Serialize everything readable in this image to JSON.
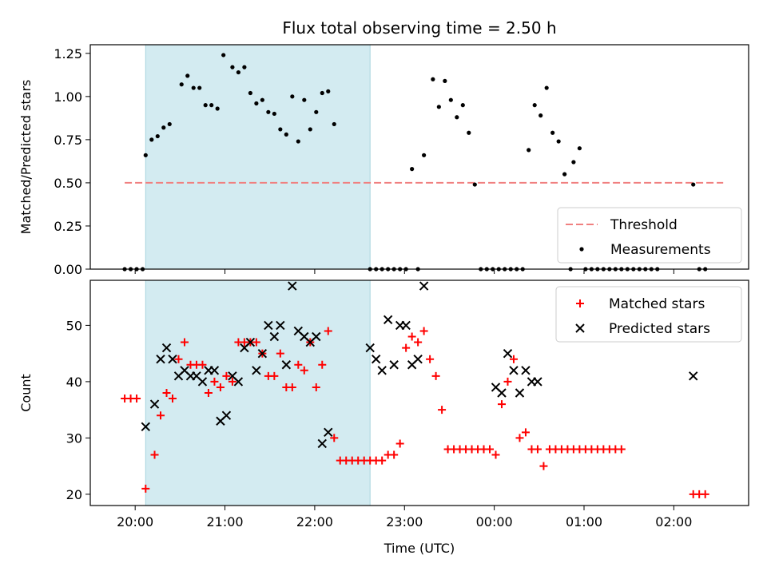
{
  "chart_data": [
    {
      "type": "scatter",
      "title": "Flux total observing time = 2.50 h",
      "xlabel": "",
      "ylabel": "Matched/Predicted stars",
      "ylim": [
        0,
        1.3
      ],
      "yticks": [
        0,
        0.25,
        0.5,
        0.75,
        1.0,
        1.25
      ],
      "ytick_labels": [
        "0.00",
        "0.25",
        "0.50",
        "0.75",
        "1.00",
        "1.25"
      ],
      "legend_position": "lower-right",
      "shaded_region": {
        "x_start": "20:07",
        "x_end": "22:37",
        "color": "#d3ebf1"
      },
      "threshold": {
        "name": "Threshold",
        "value": 0.5,
        "x_start": "19:53",
        "x_end": "02:33",
        "color": "#f08080"
      },
      "series": [
        {
          "name": "Measurements",
          "color": "#000000",
          "marker": "dot",
          "points": [
            [
              "19:53",
              0
            ],
            [
              "19:57",
              0
            ],
            [
              "20:01",
              0
            ],
            [
              "20:05",
              0
            ],
            [
              "20:07",
              0.66
            ],
            [
              "20:11",
              0.75
            ],
            [
              "20:15",
              0.77
            ],
            [
              "20:19",
              0.82
            ],
            [
              "20:23",
              0.84
            ],
            [
              "20:31",
              1.07
            ],
            [
              "20:35",
              1.12
            ],
            [
              "20:39",
              1.05
            ],
            [
              "20:43",
              1.05
            ],
            [
              "20:47",
              0.95
            ],
            [
              "20:51",
              0.95
            ],
            [
              "20:55",
              0.93
            ],
            [
              "20:59",
              1.24
            ],
            [
              "21:05",
              1.17
            ],
            [
              "21:09",
              1.14
            ],
            [
              "21:13",
              1.17
            ],
            [
              "21:17",
              1.02
            ],
            [
              "21:21",
              0.96
            ],
            [
              "21:25",
              0.98
            ],
            [
              "21:29",
              0.91
            ],
            [
              "21:33",
              0.9
            ],
            [
              "21:37",
              0.81
            ],
            [
              "21:41",
              0.78
            ],
            [
              "21:45",
              1.0
            ],
            [
              "21:49",
              0.74
            ],
            [
              "21:53",
              0.98
            ],
            [
              "21:57",
              0.81
            ],
            [
              "22:01",
              0.91
            ],
            [
              "22:05",
              1.02
            ],
            [
              "22:09",
              1.03
            ],
            [
              "22:13",
              0.84
            ],
            [
              "22:37",
              0
            ],
            [
              "22:41",
              0
            ],
            [
              "22:45",
              0
            ],
            [
              "22:49",
              0
            ],
            [
              "22:53",
              0
            ],
            [
              "22:57",
              0
            ],
            [
              "23:01",
              0
            ],
            [
              "23:05",
              0.58
            ],
            [
              "23:09",
              0
            ],
            [
              "23:13",
              0.66
            ],
            [
              "23:19",
              1.1
            ],
            [
              "23:23",
              0.94
            ],
            [
              "23:27",
              1.09
            ],
            [
              "23:31",
              0.98
            ],
            [
              "23:35",
              0.88
            ],
            [
              "23:39",
              0.95
            ],
            [
              "23:43",
              0.79
            ],
            [
              "23:47",
              0.49
            ],
            [
              "23:51",
              0
            ],
            [
              "23:55",
              0
            ],
            [
              "23:59",
              0
            ],
            [
              "00:03",
              0
            ],
            [
              "00:07",
              0
            ],
            [
              "00:11",
              0
            ],
            [
              "00:15",
              0
            ],
            [
              "00:19",
              0
            ],
            [
              "00:23",
              0.69
            ],
            [
              "00:27",
              0.95
            ],
            [
              "00:31",
              0.89
            ],
            [
              "00:35",
              1.05
            ],
            [
              "00:39",
              0.79
            ],
            [
              "00:43",
              0.74
            ],
            [
              "00:47",
              0.55
            ],
            [
              "00:51",
              0
            ],
            [
              "00:53",
              0.62
            ],
            [
              "00:57",
              0.7
            ],
            [
              "01:01",
              0
            ],
            [
              "01:05",
              0
            ],
            [
              "01:09",
              0
            ],
            [
              "01:13",
              0
            ],
            [
              "01:17",
              0
            ],
            [
              "01:21",
              0
            ],
            [
              "01:25",
              0
            ],
            [
              "01:29",
              0
            ],
            [
              "01:33",
              0
            ],
            [
              "01:37",
              0
            ],
            [
              "01:41",
              0
            ],
            [
              "01:45",
              0
            ],
            [
              "01:49",
              0
            ],
            [
              "02:13",
              0.49
            ],
            [
              "02:17",
              0
            ],
            [
              "02:21",
              0
            ]
          ]
        }
      ]
    },
    {
      "type": "scatter",
      "title": "",
      "xlabel": "Time (UTC)",
      "ylabel": "Count",
      "ylim": [
        18,
        58
      ],
      "yticks": [
        20,
        30,
        40,
        50
      ],
      "xticks": [
        "20:00",
        "21:00",
        "22:00",
        "23:00",
        "00:00",
        "01:00",
        "02:00"
      ],
      "legend_position": "upper-right",
      "shaded_region": {
        "x_start": "20:07",
        "x_end": "22:37",
        "color": "#d3ebf1"
      },
      "series": [
        {
          "name": "Matched stars",
          "color": "#ff0000",
          "marker": "plus",
          "points": [
            [
              "19:53",
              37
            ],
            [
              "19:57",
              37
            ],
            [
              "20:01",
              37
            ],
            [
              "20:07",
              21
            ],
            [
              "20:13",
              27
            ],
            [
              "20:17",
              34
            ],
            [
              "20:21",
              38
            ],
            [
              "20:25",
              37
            ],
            [
              "20:29",
              44
            ],
            [
              "20:33",
              47
            ],
            [
              "20:37",
              43
            ],
            [
              "20:41",
              43
            ],
            [
              "20:45",
              43
            ],
            [
              "20:49",
              38
            ],
            [
              "20:53",
              40
            ],
            [
              "20:57",
              39
            ],
            [
              "21:01",
              41
            ],
            [
              "21:05",
              40
            ],
            [
              "21:09",
              47
            ],
            [
              "21:13",
              47
            ],
            [
              "21:17",
              47
            ],
            [
              "21:21",
              47
            ],
            [
              "21:25",
              45
            ],
            [
              "21:29",
              41
            ],
            [
              "21:33",
              41
            ],
            [
              "21:37",
              45
            ],
            [
              "21:41",
              39
            ],
            [
              "21:45",
              39
            ],
            [
              "21:49",
              43
            ],
            [
              "21:53",
              42
            ],
            [
              "21:57",
              47
            ],
            [
              "22:01",
              39
            ],
            [
              "22:05",
              43
            ],
            [
              "22:09",
              49
            ],
            [
              "22:13",
              30
            ],
            [
              "22:17",
              26
            ],
            [
              "22:21",
              26
            ],
            [
              "22:25",
              26
            ],
            [
              "22:29",
              26
            ],
            [
              "22:33",
              26
            ],
            [
              "22:37",
              26
            ],
            [
              "22:41",
              26
            ],
            [
              "22:45",
              26
            ],
            [
              "22:49",
              27
            ],
            [
              "22:53",
              27
            ],
            [
              "22:57",
              29
            ],
            [
              "23:01",
              46
            ],
            [
              "23:05",
              48
            ],
            [
              "23:09",
              47
            ],
            [
              "23:13",
              49
            ],
            [
              "23:17",
              44
            ],
            [
              "23:21",
              41
            ],
            [
              "23:25",
              35
            ],
            [
              "23:29",
              28
            ],
            [
              "23:33",
              28
            ],
            [
              "23:37",
              28
            ],
            [
              "23:41",
              28
            ],
            [
              "23:45",
              28
            ],
            [
              "23:49",
              28
            ],
            [
              "23:53",
              28
            ],
            [
              "23:57",
              28
            ],
            [
              "00:01",
              27
            ],
            [
              "00:05",
              36
            ],
            [
              "00:09",
              40
            ],
            [
              "00:13",
              44
            ],
            [
              "00:17",
              30
            ],
            [
              "00:21",
              31
            ],
            [
              "00:25",
              28
            ],
            [
              "00:29",
              28
            ],
            [
              "00:33",
              25
            ],
            [
              "00:37",
              28
            ],
            [
              "00:41",
              28
            ],
            [
              "00:45",
              28
            ],
            [
              "00:49",
              28
            ],
            [
              "00:53",
              28
            ],
            [
              "00:57",
              28
            ],
            [
              "01:01",
              28
            ],
            [
              "01:05",
              28
            ],
            [
              "01:09",
              28
            ],
            [
              "01:13",
              28
            ],
            [
              "01:17",
              28
            ],
            [
              "01:21",
              28
            ],
            [
              "01:25",
              28
            ],
            [
              "02:13",
              20
            ],
            [
              "02:17",
              20
            ],
            [
              "02:21",
              20
            ]
          ]
        },
        {
          "name": "Predicted stars",
          "color": "#000000",
          "marker": "x",
          "points": [
            [
              "20:07",
              32
            ],
            [
              "20:13",
              36
            ],
            [
              "20:17",
              44
            ],
            [
              "20:21",
              46
            ],
            [
              "20:25",
              44
            ],
            [
              "20:29",
              41
            ],
            [
              "20:33",
              42
            ],
            [
              "20:37",
              41
            ],
            [
              "20:41",
              41
            ],
            [
              "20:45",
              40
            ],
            [
              "20:49",
              42
            ],
            [
              "20:53",
              42
            ],
            [
              "20:57",
              33
            ],
            [
              "21:01",
              34
            ],
            [
              "21:05",
              41
            ],
            [
              "21:09",
              40
            ],
            [
              "21:13",
              46
            ],
            [
              "21:17",
              47
            ],
            [
              "21:21",
              42
            ],
            [
              "21:25",
              45
            ],
            [
              "21:29",
              50
            ],
            [
              "21:33",
              48
            ],
            [
              "21:37",
              50
            ],
            [
              "21:41",
              43
            ],
            [
              "21:45",
              57
            ],
            [
              "21:49",
              49
            ],
            [
              "21:53",
              48
            ],
            [
              "21:57",
              47
            ],
            [
              "22:01",
              48
            ],
            [
              "22:05",
              29
            ],
            [
              "22:09",
              31
            ],
            [
              "22:37",
              46
            ],
            [
              "22:41",
              44
            ],
            [
              "22:45",
              42
            ],
            [
              "22:49",
              51
            ],
            [
              "22:53",
              43
            ],
            [
              "22:57",
              50
            ],
            [
              "23:01",
              50
            ],
            [
              "23:05",
              43
            ],
            [
              "23:09",
              44
            ],
            [
              "23:13",
              57
            ],
            [
              "00:01",
              39
            ],
            [
              "00:05",
              38
            ],
            [
              "00:09",
              45
            ],
            [
              "00:13",
              42
            ],
            [
              "00:17",
              38
            ],
            [
              "00:21",
              42
            ],
            [
              "00:25",
              40
            ],
            [
              "00:29",
              40
            ],
            [
              "02:13",
              41
            ]
          ]
        }
      ]
    }
  ]
}
